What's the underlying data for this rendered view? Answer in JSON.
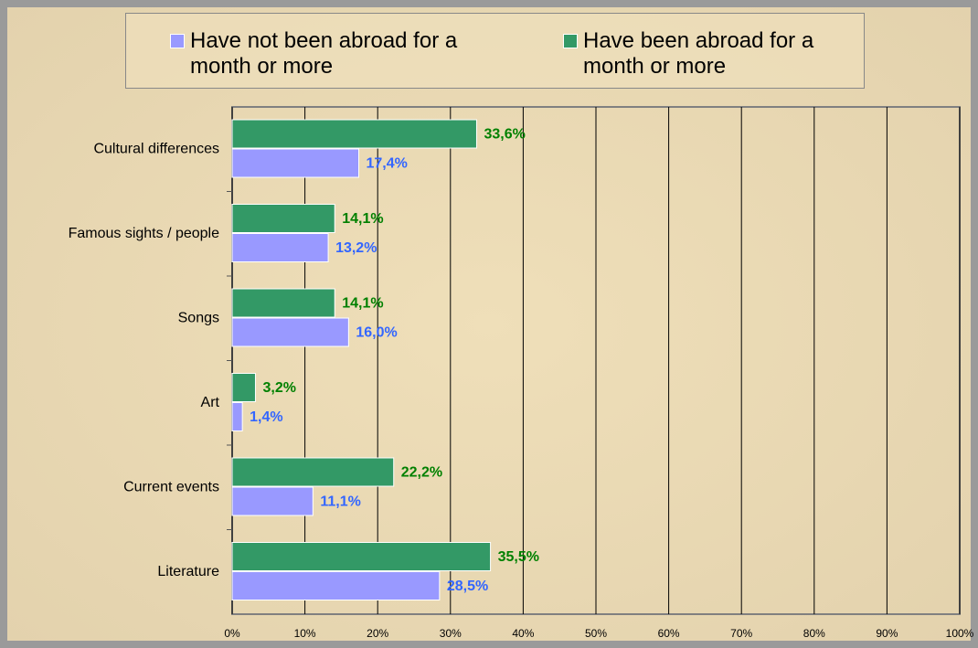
{
  "chart_data": {
    "type": "hbar",
    "categories": [
      "Cultural differences",
      "Famous sights / people",
      "Songs",
      "Art",
      "Current events",
      "Literature"
    ],
    "series": [
      {
        "name": "Have not been abroad for a month or more",
        "color": "#9999ff",
        "label_color": "#3366ff",
        "values": [
          17.4,
          13.2,
          16.0,
          1.4,
          11.1,
          28.5
        ],
        "value_labels": [
          "17,4%",
          "13,2%",
          "16,0%",
          "1,4%",
          "11,1%",
          "28,5%"
        ]
      },
      {
        "name": "Have been abroad for a month or more",
        "color": "#339966",
        "label_color": "#008000",
        "values": [
          33.6,
          14.1,
          14.1,
          3.2,
          22.2,
          35.5
        ],
        "value_labels": [
          "33,6%",
          "14,1%",
          "14,1%",
          "3,2%",
          "22,2%",
          "35,5%"
        ]
      }
    ],
    "xlim": [
      0,
      100
    ],
    "xticks": [
      {
        "value": 0,
        "label": "0%"
      },
      {
        "value": 10,
        "label": "10%"
      },
      {
        "value": 20,
        "label": "20%"
      },
      {
        "value": 30,
        "label": "30%"
      },
      {
        "value": 40,
        "label": "40%"
      },
      {
        "value": 50,
        "label": "50%"
      },
      {
        "value": 60,
        "label": "60%"
      },
      {
        "value": 70,
        "label": "70%"
      },
      {
        "value": 80,
        "label": "80%"
      },
      {
        "value": 90,
        "label": "90%"
      },
      {
        "value": 100,
        "label": "100%"
      }
    ],
    "grid": true,
    "legend": "top"
  }
}
